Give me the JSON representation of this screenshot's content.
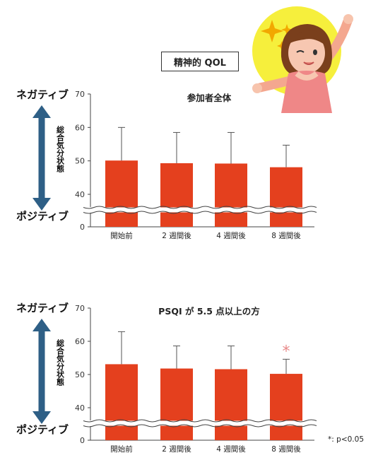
{
  "header": {
    "badge": "精神的 QOL"
  },
  "colors": {
    "bar": "#e4401e",
    "arrow": "#2e5f86",
    "star": "#e88a8a",
    "halo": "#f6ef3c"
  },
  "scale": {
    "negative": "ネガティブ",
    "positive": "ポジティブ",
    "ylabel": "総合気分状態"
  },
  "chart_data": [
    {
      "type": "bar",
      "title": "参加者全体",
      "categories": [
        "開始前",
        "2 週間後",
        "4 週間後",
        "8 週間後"
      ],
      "values": [
        50.1,
        49.3,
        49.2,
        48.1
      ],
      "error_upper": [
        60.0,
        58.5,
        58.5,
        54.7
      ],
      "ylim": [
        0,
        70
      ],
      "yticks": [
        0,
        40,
        50,
        60,
        70
      ],
      "axis_break": true,
      "significance": [
        false,
        false,
        false,
        false
      ]
    },
    {
      "type": "bar",
      "title": "PSQI が 5.5 点以上の方",
      "categories": [
        "開始前",
        "2 週間後",
        "4 週間後",
        "8 週間後"
      ],
      "values": [
        53.1,
        51.8,
        51.6,
        50.2
      ],
      "error_upper": [
        62.9,
        58.6,
        58.6,
        54.6
      ],
      "ylim": [
        0,
        70
      ],
      "yticks": [
        0,
        40,
        50,
        60,
        70
      ],
      "axis_break": true,
      "significance": [
        false,
        false,
        false,
        true
      ],
      "significance_mark": "*",
      "footnote": "*: p<0.05"
    }
  ]
}
